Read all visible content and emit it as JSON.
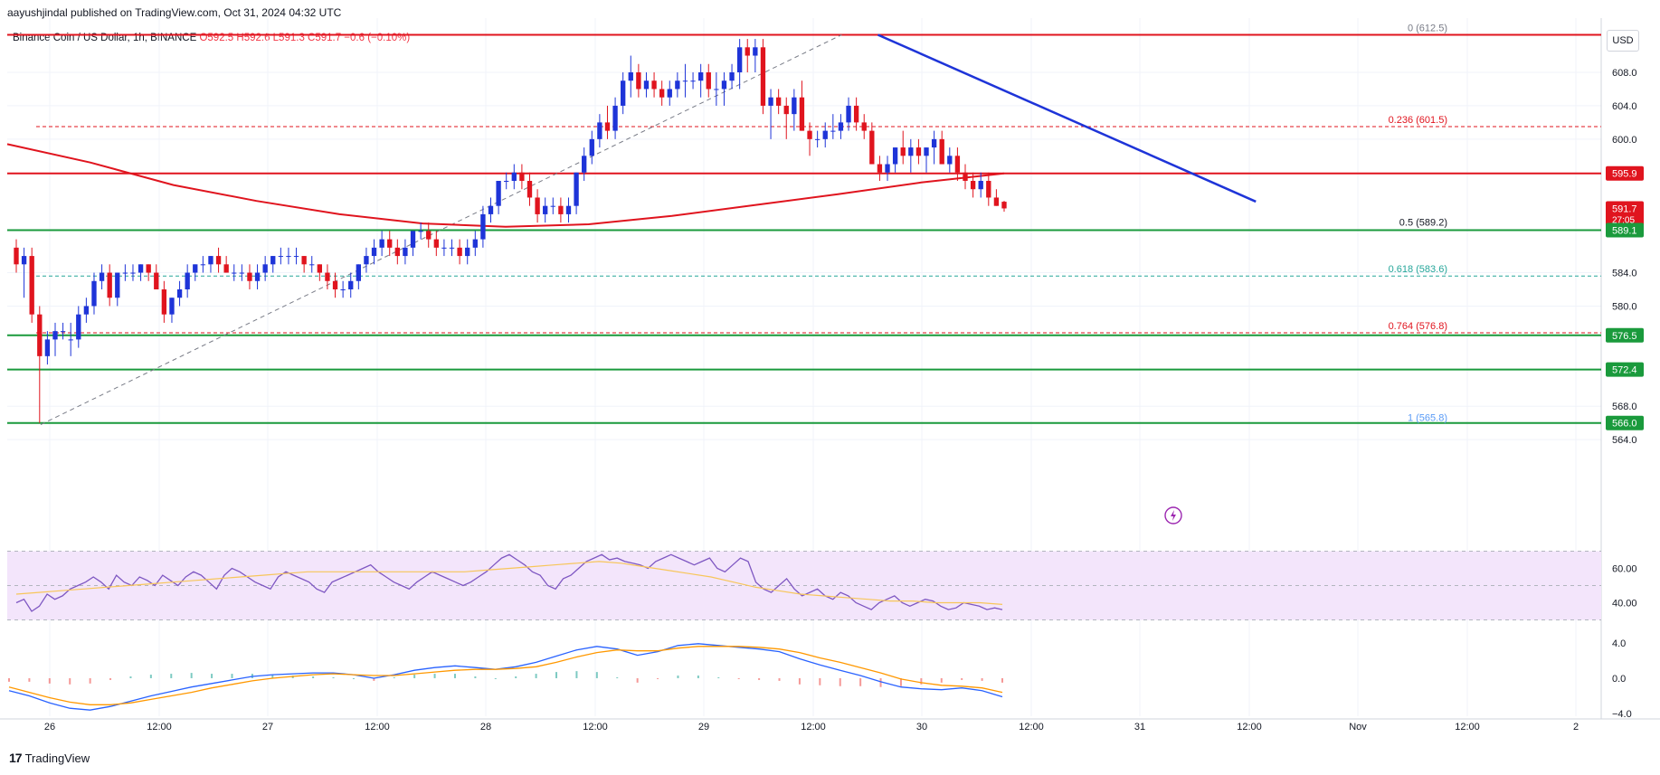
{
  "header": {
    "published": "aayushjindal published on TradingView.com, Oct 31, 2024 04:32 UTC",
    "symbol": "Binance Coin / US Dollar, 1h, BINANCE",
    "ohlc": "O592.5 H592.6 L591.3 C591.7 −0.6 (−0.10%)",
    "currency": "USD"
  },
  "footer": {
    "brand": "TradingView",
    "brand_mark": "17"
  },
  "colors": {
    "bull": "#1e34d8",
    "bear": "#e0141e",
    "ma": "#e0141e",
    "trendline": "#1e34d8",
    "resistance": "#e0141e",
    "support": "#1a9a3c",
    "fib_red": "#e0141e",
    "fib_teal": "#26a69a",
    "rsi": "#7e57c2",
    "rsi_ma": "#f7c65a",
    "rsi_band": "#f3e5fb",
    "macd": "#2962ff",
    "signal": "#ff9800"
  },
  "chart_data": {
    "type": "candlestick",
    "x_ticks": [
      "26",
      "12:00",
      "27",
      "12:00",
      "28",
      "12:00",
      "29",
      "12:00",
      "30",
      "12:00",
      "31",
      "12:00",
      "Nov",
      "12:00",
      "2"
    ],
    "y_ticks": [
      "608.0",
      "604.0",
      "600.0",
      "584.0",
      "580.0",
      "568.0",
      "564.0"
    ],
    "ylim": [
      562.5,
      614.5
    ],
    "price_labels": [
      {
        "text": "595.9",
        "value": 595.9,
        "kind": "resistance"
      },
      {
        "text": "591.7",
        "sub": "27:05",
        "value": 591.7,
        "kind": "last"
      },
      {
        "text": "589.1",
        "value": 589.1,
        "kind": "support"
      },
      {
        "text": "576.5",
        "value": 576.5,
        "kind": "support"
      },
      {
        "text": "572.4",
        "value": 572.4,
        "kind": "support"
      },
      {
        "text": "566.0",
        "value": 566.0,
        "kind": "support"
      }
    ],
    "horizontal_lines": [
      {
        "value": 612.5,
        "kind": "resistance"
      },
      {
        "value": 595.9,
        "kind": "resistance"
      },
      {
        "value": 589.1,
        "kind": "support"
      },
      {
        "value": 576.5,
        "kind": "support"
      },
      {
        "value": 572.4,
        "kind": "support"
      },
      {
        "value": 566.0,
        "kind": "support"
      }
    ],
    "fib_levels": [
      {
        "label": "0 (612.5)",
        "value": 612.5,
        "dashed": false,
        "kind": "gray"
      },
      {
        "label": "0.236 (601.5)",
        "value": 601.5,
        "dashed": true,
        "kind": "red"
      },
      {
        "label": "0.5 (589.2)",
        "value": 589.2,
        "dashed": false,
        "kind": "dark"
      },
      {
        "label": "0.618 (583.6)",
        "value": 583.6,
        "dashed": true,
        "kind": "teal"
      },
      {
        "label": "0.764 (576.8)",
        "value": 576.8,
        "dashed": true,
        "kind": "red"
      },
      {
        "label": "1 (565.8)",
        "value": 565.8,
        "dashed": false,
        "kind": "blue"
      }
    ],
    "fib_anchor": {
      "from_price": 565.8,
      "to_price": 612.5,
      "from_time": "Oct 26 00:00",
      "to_time": "Oct 29 15:00"
    },
    "trendline": {
      "from_price": 612.5,
      "from_time": "Oct 29 15:00",
      "to_price": 592.3,
      "to_time": "Oct 31 12:00"
    },
    "candles": [
      [
        587,
        588,
        584,
        585
      ],
      [
        585,
        587,
        581,
        586
      ],
      [
        586,
        587,
        578,
        579
      ],
      [
        579,
        580,
        566,
        574
      ],
      [
        574,
        577,
        573,
        576
      ],
      [
        576,
        578,
        574,
        577
      ],
      [
        577,
        578,
        576,
        577
      ],
      [
        576,
        578,
        574,
        576
      ],
      [
        576,
        580,
        575,
        579
      ],
      [
        579,
        581,
        578,
        580
      ],
      [
        580,
        584,
        579,
        583
      ],
      [
        583,
        585,
        582,
        584
      ],
      [
        584,
        585,
        580,
        581
      ],
      [
        581,
        584,
        580,
        584
      ],
      [
        584,
        585,
        583,
        584
      ],
      [
        584,
        585,
        583,
        584
      ],
      [
        584,
        585,
        583,
        585
      ],
      [
        585,
        585,
        583,
        584
      ],
      [
        584,
        585,
        582,
        582
      ],
      [
        582,
        583,
        578,
        579
      ],
      [
        579,
        581,
        578,
        581
      ],
      [
        581,
        583,
        580,
        582
      ],
      [
        582,
        585,
        581,
        584
      ],
      [
        584,
        585,
        583,
        585
      ],
      [
        585,
        586,
        584,
        585
      ],
      [
        585,
        586,
        584,
        586
      ],
      [
        586,
        587,
        584,
        585
      ],
      [
        585,
        586,
        584,
        584
      ],
      [
        584,
        585,
        583,
        584
      ],
      [
        584,
        585,
        583,
        584
      ],
      [
        584,
        585,
        582,
        583
      ],
      [
        583,
        585,
        582,
        584
      ],
      [
        584,
        586,
        583,
        585
      ],
      [
        585,
        586,
        584,
        586
      ],
      [
        586,
        587,
        585,
        586
      ],
      [
        586,
        587,
        585,
        586
      ],
      [
        586,
        587,
        585,
        586
      ],
      [
        586,
        586,
        584,
        585
      ],
      [
        585,
        586,
        584,
        585
      ],
      [
        585,
        585,
        583,
        584
      ],
      [
        584,
        585,
        582,
        583
      ],
      [
        583,
        584,
        581,
        582
      ],
      [
        582,
        583,
        581,
        582
      ],
      [
        582,
        584,
        581,
        583
      ],
      [
        583,
        585,
        582,
        585
      ],
      [
        585,
        587,
        584,
        586
      ],
      [
        586,
        588,
        585,
        587
      ],
      [
        587,
        589,
        586,
        588
      ],
      [
        588,
        589,
        586,
        587
      ],
      [
        587,
        588,
        585,
        586
      ],
      [
        586,
        588,
        585,
        587
      ],
      [
        587,
        589,
        586,
        589
      ],
      [
        589,
        590,
        588,
        589
      ],
      [
        589,
        590,
        587,
        588
      ],
      [
        588,
        589,
        586,
        587
      ],
      [
        587,
        588,
        586,
        587
      ],
      [
        587,
        588,
        586,
        587
      ],
      [
        587,
        588,
        585,
        586
      ],
      [
        586,
        588,
        585,
        587
      ],
      [
        587,
        589,
        586,
        588
      ],
      [
        588,
        592,
        587,
        591
      ],
      [
        591,
        593,
        590,
        592
      ],
      [
        592,
        595,
        591,
        595
      ],
      [
        595,
        596,
        594,
        595
      ],
      [
        595,
        597,
        594,
        596
      ],
      [
        596,
        597,
        594,
        595
      ],
      [
        595,
        596,
        592,
        593
      ],
      [
        593,
        594,
        590,
        591
      ],
      [
        591,
        593,
        590,
        592
      ],
      [
        592,
        593,
        591,
        592
      ],
      [
        592,
        593,
        590,
        591
      ],
      [
        591,
        593,
        590,
        592
      ],
      [
        592,
        596,
        591,
        596
      ],
      [
        596,
        599,
        595,
        598
      ],
      [
        598,
        601,
        597,
        600
      ],
      [
        600,
        603,
        599,
        602
      ],
      [
        602,
        604,
        600,
        601
      ],
      [
        601,
        605,
        600,
        604
      ],
      [
        604,
        608,
        603,
        607
      ],
      [
        607,
        610,
        605,
        608
      ],
      [
        608,
        609,
        605,
        606
      ],
      [
        606,
        608,
        605,
        607
      ],
      [
        607,
        608,
        605,
        606
      ],
      [
        606,
        607,
        604,
        605
      ],
      [
        605,
        607,
        604,
        606
      ],
      [
        606,
        608,
        605,
        607
      ],
      [
        607,
        609,
        605,
        607
      ],
      [
        607,
        608,
        606,
        607
      ],
      [
        607,
        609,
        605,
        608
      ],
      [
        608,
        609,
        605,
        606
      ],
      [
        606,
        608,
        604,
        606
      ],
      [
        606,
        608,
        604,
        607
      ],
      [
        607,
        609,
        606,
        608
      ],
      [
        608,
        612,
        606,
        611
      ],
      [
        611,
        612,
        608,
        610
      ],
      [
        610,
        612,
        608,
        611
      ],
      [
        611,
        612,
        603,
        604
      ],
      [
        604,
        606,
        600,
        605
      ],
      [
        605,
        606,
        603,
        604
      ],
      [
        604,
        605,
        600,
        603
      ],
      [
        603,
        606,
        601,
        605
      ],
      [
        605,
        607,
        601,
        601
      ],
      [
        601,
        602,
        598,
        600
      ],
      [
        600,
        601,
        599,
        600
      ],
      [
        600,
        602,
        599,
        601
      ],
      [
        601,
        603,
        600,
        601
      ],
      [
        601,
        603,
        600,
        602
      ],
      [
        602,
        605,
        601,
        604
      ],
      [
        604,
        605,
        601,
        602
      ],
      [
        602,
        603,
        600,
        601
      ],
      [
        601,
        602,
        597,
        597
      ],
      [
        597,
        598,
        595,
        596
      ],
      [
        596,
        598,
        595,
        597
      ],
      [
        597,
        599,
        596,
        599
      ],
      [
        599,
        601,
        597,
        598
      ],
      [
        598,
        600,
        596,
        599
      ],
      [
        599,
        600,
        597,
        598
      ],
      [
        598,
        599,
        596,
        599
      ],
      [
        599,
        601,
        597,
        600
      ],
      [
        600,
        601,
        597,
        597
      ],
      [
        597,
        599,
        596,
        598
      ],
      [
        598,
        599,
        595,
        596
      ],
      [
        596,
        597,
        594,
        595
      ],
      [
        595,
        596,
        593,
        594
      ],
      [
        594,
        596,
        593,
        595
      ],
      [
        595,
        596,
        592,
        593
      ],
      [
        593,
        594,
        592,
        592
      ],
      [
        592.5,
        592.6,
        591.3,
        591.7
      ]
    ],
    "ma200": [
      599.4,
      597.2,
      594.5,
      592.6,
      591.0,
      589.9,
      589.5,
      589.8,
      590.8,
      592.1,
      593.4,
      594.8,
      595.9
    ],
    "rsi": {
      "ylim": [
        25,
        75
      ],
      "y_ticks": [
        "60.00",
        "40.00"
      ],
      "band": [
        30,
        70
      ],
      "values": [
        40,
        42,
        35,
        38,
        45,
        42,
        44,
        48,
        50,
        52,
        55,
        52,
        48,
        56,
        52,
        50,
        55,
        53,
        50,
        56,
        53,
        50,
        55,
        58,
        56,
        52,
        48,
        56,
        60,
        58,
        55,
        52,
        50,
        48,
        55,
        58,
        56,
        54,
        52,
        48,
        46,
        52,
        54,
        56,
        58,
        60,
        62,
        58,
        55,
        52,
        50,
        48,
        52,
        55,
        58,
        56,
        54,
        52,
        50,
        52,
        55,
        58,
        62,
        66,
        68,
        65,
        62,
        58,
        56,
        50,
        48,
        54,
        56,
        60,
        64,
        66,
        68,
        65,
        66,
        64,
        63,
        62,
        60,
        64,
        66,
        68,
        66,
        64,
        62,
        64,
        66,
        60,
        58,
        62,
        66,
        64,
        52,
        48,
        46,
        50,
        54,
        48,
        44,
        46,
        48,
        44,
        42,
        46,
        44,
        40,
        38,
        36,
        40,
        42,
        44,
        40,
        38,
        40,
        42,
        41,
        38,
        36,
        37,
        40,
        39,
        38,
        36,
        37,
        36
      ],
      "ma": [
        45,
        46,
        47,
        48,
        49,
        50,
        51,
        52,
        53,
        54,
        55,
        56,
        57,
        58,
        58,
        58,
        58,
        58,
        58,
        58,
        58,
        59,
        60,
        61,
        62,
        63,
        64,
        63,
        61,
        59,
        57,
        55,
        52,
        49,
        47,
        45,
        44,
        43,
        42,
        41,
        41,
        40,
        40,
        40,
        39
      ]
    },
    "macd": {
      "ylim": [
        -4.3,
        4.6
      ],
      "y_ticks": [
        "4.0",
        "0.0",
        "−4.0"
      ],
      "macd": [
        -1.4,
        -2.0,
        -2.8,
        -3.4,
        -3.6,
        -3.2,
        -2.6,
        -2.0,
        -1.5,
        -1.0,
        -0.6,
        -0.2,
        0.2,
        0.4,
        0.5,
        0.6,
        0.6,
        0.4,
        0.0,
        0.4,
        0.9,
        1.2,
        1.4,
        1.2,
        1.0,
        1.3,
        1.8,
        2.5,
        3.2,
        3.6,
        3.3,
        2.6,
        3.0,
        3.7,
        3.9,
        3.7,
        3.5,
        3.3,
        3.0,
        2.2,
        1.5,
        0.9,
        0.3,
        -0.4,
        -1.0,
        -1.2,
        -1.3,
        -1.1,
        -1.4,
        -2.1
      ],
      "signal": [
        -1.0,
        -1.6,
        -2.2,
        -2.7,
        -3.0,
        -3.0,
        -2.8,
        -2.4,
        -2.0,
        -1.6,
        -1.1,
        -0.7,
        -0.3,
        0.0,
        0.2,
        0.4,
        0.5,
        0.4,
        0.3,
        0.3,
        0.5,
        0.7,
        0.9,
        1.0,
        1.0,
        1.1,
        1.3,
        1.8,
        2.4,
        2.9,
        3.2,
        3.1,
        3.1,
        3.4,
        3.6,
        3.6,
        3.6,
        3.5,
        3.3,
        2.9,
        2.3,
        1.8,
        1.2,
        0.6,
        -0.1,
        -0.5,
        -0.8,
        -0.9,
        -1.1,
        -1.6
      ]
    }
  }
}
